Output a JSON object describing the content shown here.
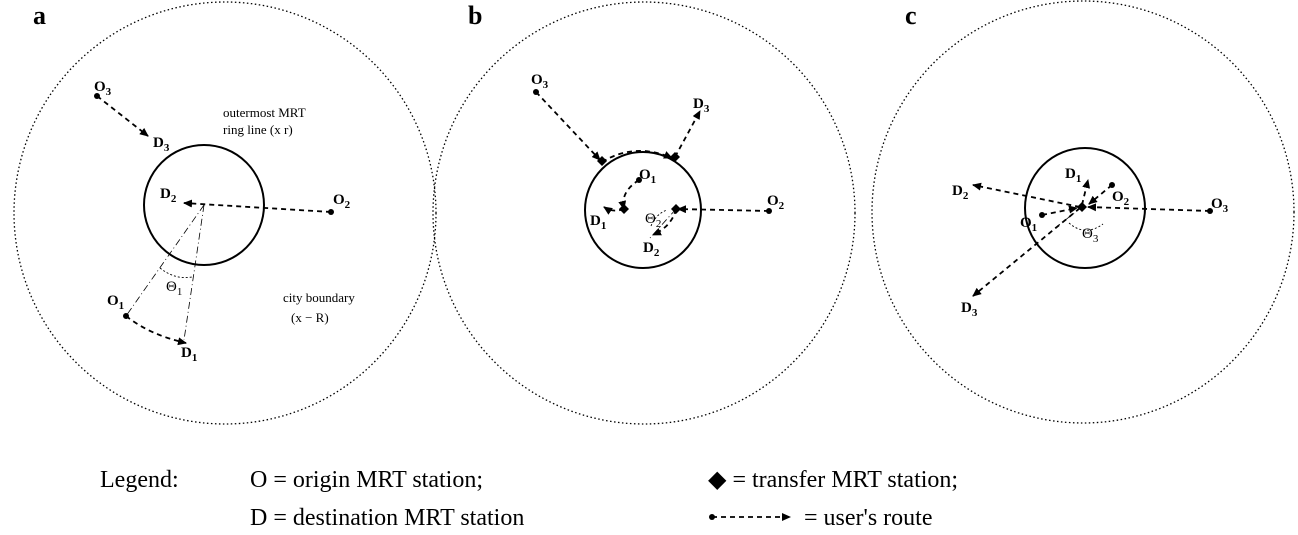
{
  "panels": [
    {
      "label": "a",
      "stations": {
        "O1": {
          "main": "O",
          "sub": "1"
        },
        "D1": {
          "main": "D",
          "sub": "1"
        },
        "O2": {
          "main": "O",
          "sub": "2"
        },
        "D2": {
          "main": "D",
          "sub": "2"
        },
        "O3": {
          "main": "O",
          "sub": "3"
        },
        "D3": {
          "main": "D",
          "sub": "3"
        }
      },
      "angle": {
        "main": "Θ",
        "sub": "1"
      },
      "ring_annotation": [
        "outermost MRT",
        "ring line (x     r)"
      ],
      "city_annotation": [
        "city boundary",
        "(x − R)"
      ]
    },
    {
      "label": "b",
      "stations": {
        "O1": {
          "main": "O",
          "sub": "1"
        },
        "D1": {
          "main": "D",
          "sub": "1"
        },
        "O2": {
          "main": "O",
          "sub": "2"
        },
        "D2": {
          "main": "D",
          "sub": "2"
        },
        "O3": {
          "main": "O",
          "sub": "3"
        },
        "D3": {
          "main": "D",
          "sub": "3"
        }
      },
      "angle": {
        "main": "Θ",
        "sub": "2"
      }
    },
    {
      "label": "c",
      "stations": {
        "O1": {
          "main": "O",
          "sub": "1"
        },
        "D1": {
          "main": "D",
          "sub": "1"
        },
        "O2": {
          "main": "O",
          "sub": "2"
        },
        "D2": {
          "main": "D",
          "sub": "2"
        },
        "O3": {
          "main": "O",
          "sub": "3"
        },
        "D3": {
          "main": "D",
          "sub": "3"
        }
      },
      "angle": {
        "main": "Θ",
        "sub": "3"
      }
    }
  ],
  "legend": {
    "title": "Legend:",
    "origin": "O = origin MRT station;",
    "destination": "D = destination MRT station",
    "transfer": "◆ = transfer MRT station;",
    "route": "= user's route"
  }
}
